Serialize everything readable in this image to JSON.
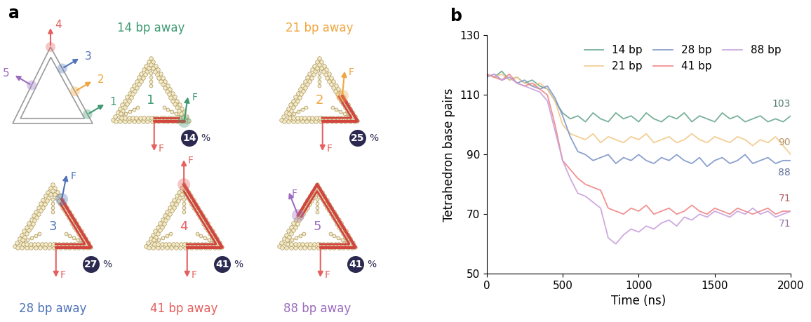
{
  "diagram": {
    "panel_label": "a",
    "force_label": "F",
    "percent_label": "%",
    "sites": [
      {
        "label": "1",
        "color": "#3f9a72"
      },
      {
        "label": "2",
        "color": "#f0a640"
      },
      {
        "label": "3",
        "color": "#4f73b8"
      },
      {
        "label": "4",
        "color": "#e5605f"
      },
      {
        "label": "5",
        "color": "#9c6cc0"
      }
    ],
    "panels": [
      {
        "title": "14 bp away",
        "site": "1",
        "percent": 14
      },
      {
        "title": "21 bp away",
        "site": "2",
        "percent": 25
      },
      {
        "title": "28 bp away",
        "site": "3",
        "percent": 27
      },
      {
        "title": "41 bp away",
        "site": "4",
        "percent": 41
      },
      {
        "title": "88 bp away",
        "site": "5",
        "percent": 41
      }
    ]
  },
  "chart_data": {
    "type": "line",
    "panel_label": "b",
    "x_label": "Time (ns)",
    "y_label": "Tetrahedron base pairs",
    "x": [
      0,
      50,
      100,
      150,
      200,
      250,
      300,
      350,
      400,
      450,
      500,
      550,
      600,
      650,
      700,
      750,
      800,
      850,
      900,
      950,
      1000,
      1050,
      1100,
      1150,
      1200,
      1250,
      1300,
      1350,
      1400,
      1450,
      1500,
      1550,
      1600,
      1650,
      1700,
      1750,
      1800,
      1850,
      1900,
      1950,
      2000
    ],
    "xlim": [
      0,
      2000
    ],
    "xticks": [
      0,
      500,
      1000,
      1500,
      2000
    ],
    "ylim": [
      50,
      130
    ],
    "yticks": [
      50,
      70,
      90,
      110,
      130
    ],
    "grid": false,
    "legend": "upper right",
    "series": [
      {
        "name": "14 bp",
        "color": "#6aa88e",
        "end_label": "103",
        "values": [
          117,
          116,
          118,
          115,
          116,
          114,
          115,
          113,
          112,
          108,
          104,
          102,
          103,
          101,
          104,
          102,
          101,
          104,
          102,
          103,
          101,
          104,
          102,
          101,
          103,
          102,
          104,
          101,
          103,
          102,
          101,
          104,
          102,
          103,
          101,
          102,
          103,
          101,
          102,
          101,
          103
        ]
      },
      {
        "name": "21 bp",
        "color": "#f2c98a",
        "end_label": "90",
        "values": [
          117,
          116,
          117,
          115,
          116,
          114,
          113,
          114,
          112,
          108,
          100,
          97,
          96,
          95,
          97,
          94,
          96,
          95,
          94,
          96,
          95,
          97,
          94,
          95,
          96,
          94,
          95,
          97,
          95,
          94,
          96,
          95,
          94,
          96,
          95,
          93,
          95,
          94,
          96,
          93,
          90
        ]
      },
      {
        "name": "28 bp",
        "color": "#7d96c8",
        "end_label": "88",
        "values": [
          116,
          117,
          115,
          116,
          114,
          115,
          113,
          112,
          113,
          109,
          103,
          96,
          91,
          90,
          88,
          89,
          90,
          87,
          89,
          88,
          90,
          88,
          87,
          89,
          88,
          90,
          88,
          87,
          89,
          86,
          88,
          89,
          87,
          88,
          90,
          87,
          88,
          89,
          87,
          88,
          88
        ]
      },
      {
        "name": "41 bp",
        "color": "#f08585",
        "end_label": "71",
        "values": [
          117,
          116,
          115,
          117,
          114,
          113,
          114,
          112,
          110,
          100,
          88,
          85,
          82,
          80,
          79,
          78,
          72,
          71,
          70,
          72,
          71,
          73,
          70,
          71,
          72,
          70,
          71,
          73,
          71,
          70,
          72,
          71,
          70,
          72,
          71,
          70,
          71,
          72,
          70,
          71,
          71
        ]
      },
      {
        "name": "88 bp",
        "color": "#c9a0dc",
        "end_label": "71",
        "values": [
          116,
          117,
          115,
          116,
          114,
          113,
          112,
          111,
          108,
          98,
          88,
          82,
          77,
          76,
          74,
          72,
          62,
          60,
          63,
          65,
          64,
          66,
          65,
          67,
          68,
          66,
          69,
          68,
          70,
          69,
          71,
          70,
          69,
          71,
          70,
          72,
          70,
          71,
          69,
          70,
          71
        ]
      }
    ]
  }
}
